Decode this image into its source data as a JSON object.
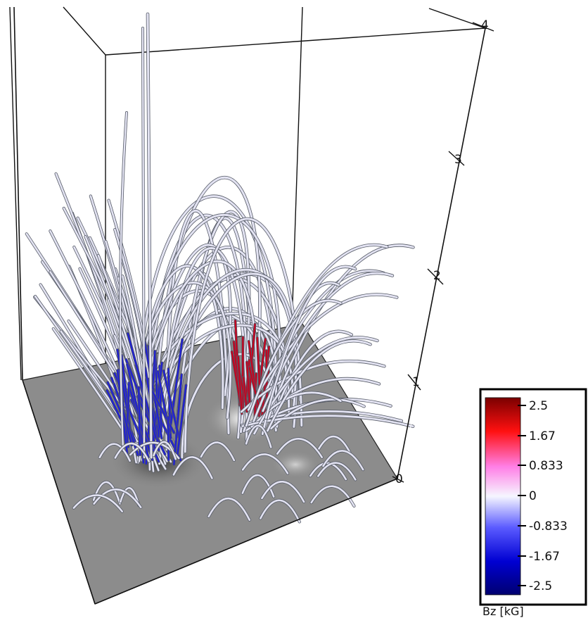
{
  "colorbar": {
    "title": "Bz [kG]",
    "ticks": [
      "2.5",
      "1.67",
      "0.833",
      "0",
      "-0.833",
      "-1.67",
      "-2.5"
    ],
    "colors": [
      "#8b0000",
      "#ff1a1a",
      "#ff80e0",
      "#f2f2ff",
      "#4d4dff",
      "#0000c8",
      "#00007a"
    ]
  },
  "height_axis": {
    "ticks": [
      "0",
      "1",
      "2",
      "3",
      "4"
    ]
  },
  "colors": {
    "magnetogram_plane": "#8c8c8c",
    "line_neutral": "#e3e3f2",
    "line_negative": "#1f1fd6",
    "line_positive": "#c8001e",
    "box_edge": "#111111"
  }
}
